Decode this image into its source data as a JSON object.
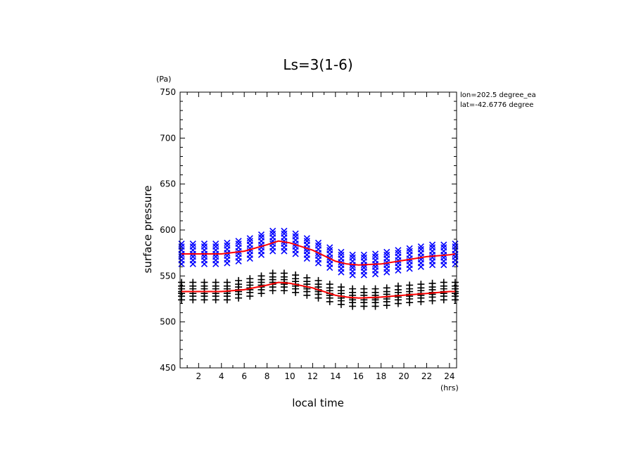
{
  "chart_data": {
    "type": "scatter",
    "title": "Ls=3(1-6)",
    "xlabel": "local time",
    "ylabel": "surface pressure",
    "x_unit": "(hrs)",
    "y_unit": "(Pa)",
    "xlim": [
      0.375,
      24.625
    ],
    "ylim": [
      450,
      750
    ],
    "x_ticks": [
      2,
      4,
      6,
      8,
      10,
      12,
      14,
      16,
      18,
      20,
      22,
      24
    ],
    "y_ticks": [
      450,
      500,
      550,
      600,
      650,
      700,
      750
    ],
    "grid": false,
    "annotations": [
      "lon=202.5 degree_ea",
      "lat=-42.6776 degree"
    ],
    "series": [
      {
        "marker": "x",
        "color": "#0000ff",
        "x": [
          0.5,
          1.5,
          2.5,
          3.5,
          4.5,
          5.5,
          6.5,
          7.5,
          8.5,
          9.5,
          10.5,
          11.5,
          12.5,
          13.5,
          14.5,
          15.5,
          16.5,
          17.5,
          18.5,
          19.5,
          20.5,
          21.5,
          22.5,
          23.5,
          24.5
        ],
        "center": [
          574,
          574,
          574,
          574,
          575,
          577,
          580,
          584,
          588,
          588,
          585,
          580,
          575,
          570,
          565,
          562,
          562,
          563,
          565,
          567,
          569,
          571,
          573,
          573,
          574
        ],
        "offsets": [
          -11,
          -7,
          -3,
          0,
          4,
          8,
          11
        ]
      },
      {
        "marker": "+",
        "color": "#000000",
        "x": [
          0.5,
          1.5,
          2.5,
          3.5,
          4.5,
          5.5,
          6.5,
          7.5,
          8.5,
          9.5,
          10.5,
          11.5,
          12.5,
          13.5,
          14.5,
          15.5,
          16.5,
          17.5,
          18.5,
          19.5,
          20.5,
          21.5,
          22.5,
          23.5,
          24.5
        ],
        "center": [
          533,
          533,
          533,
          533,
          533,
          535,
          537,
          540,
          543,
          543,
          541,
          538,
          535,
          531,
          528,
          526,
          526,
          526,
          527,
          529,
          530,
          531,
          532,
          533,
          533
        ],
        "offsets": [
          -9,
          -5,
          -2,
          0,
          3,
          6,
          10
        ]
      },
      {
        "type": "line",
        "color": "#ff0000",
        "x": [
          0.5,
          2,
          4,
          6,
          8,
          9,
          10,
          12,
          14,
          15,
          16,
          18,
          20,
          22,
          24,
          24.5
        ],
        "y": [
          574,
          574,
          574,
          577,
          584,
          588,
          586,
          578,
          566,
          563,
          562,
          563,
          567,
          571,
          573,
          574
        ]
      },
      {
        "type": "line",
        "color": "#ff0000",
        "x": [
          0.5,
          2,
          4,
          6,
          8,
          9,
          10,
          12,
          14,
          15,
          16,
          18,
          20,
          22,
          24,
          24.5
        ],
        "y": [
          533,
          533,
          533,
          535,
          540,
          543,
          542,
          537,
          529,
          527,
          526,
          527,
          529,
          531,
          533,
          533
        ]
      }
    ]
  }
}
